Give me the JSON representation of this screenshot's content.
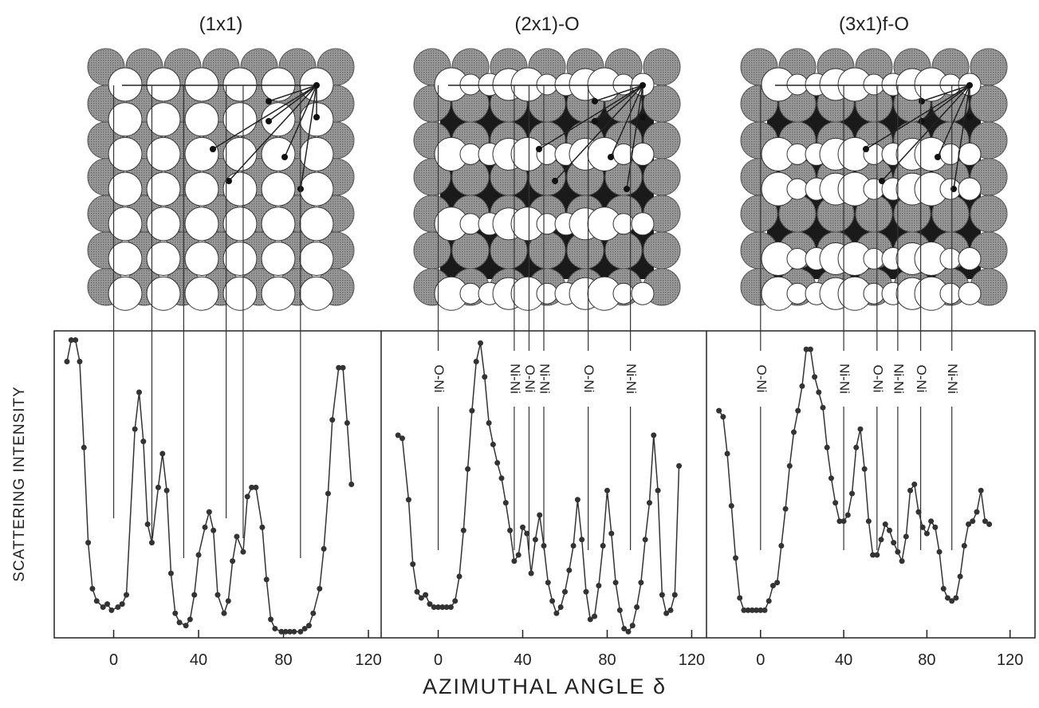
{
  "figure": {
    "xlabel": "AZIMUTHAL ANGLE δ",
    "ylabel": "SCATTERING INTENSITY"
  },
  "chart_data": [
    {
      "type": "line",
      "title": "(1x1)",
      "xlim": [
        -28,
        126
      ],
      "xticks": [
        0,
        40,
        80,
        120
      ],
      "ylim": [
        0,
        100
      ],
      "x": [
        -22,
        -20,
        -18,
        -16,
        -14,
        -12,
        -10,
        -8,
        -5,
        -3,
        -1,
        2,
        4,
        6,
        10,
        12,
        14,
        16,
        18,
        21,
        23,
        25,
        27,
        29,
        31,
        34,
        36,
        38,
        40,
        43,
        45,
        47,
        49,
        52,
        54,
        56,
        58,
        61,
        63,
        65,
        67,
        70,
        72,
        74,
        76,
        79,
        81,
        83,
        85,
        88,
        90,
        92,
        94,
        97,
        99,
        101,
        103,
        106,
        108,
        110,
        112
      ],
      "series": [
        {
          "color": "#333333",
          "values": [
            90,
            97,
            97,
            90,
            62,
            31,
            16,
            12,
            10,
            11,
            9,
            10,
            11,
            14,
            68,
            80,
            64,
            37,
            31,
            49,
            60,
            48,
            21,
            8,
            5,
            4,
            6,
            14,
            27,
            36,
            41,
            35,
            14,
            8,
            12,
            25,
            33,
            28,
            46,
            49,
            49,
            36,
            19,
            6,
            3,
            2,
            2,
            2,
            2,
            2,
            3,
            4,
            8,
            16,
            29,
            47,
            71,
            88,
            88,
            70,
            50
          ]
        }
      ],
      "markers": [
        0,
        18,
        33,
        53,
        61,
        88
      ]
    },
    {
      "type": "line",
      "title": "(2x1)-O",
      "xlim": [
        -27,
        127
      ],
      "xticks": [
        0,
        40,
        80,
        120
      ],
      "ylim": [
        0,
        100
      ],
      "x": [
        -19,
        -17,
        -14,
        -12,
        -10,
        -8,
        -6,
        -4,
        -2,
        0,
        2,
        4,
        6,
        8,
        10,
        12,
        14,
        16,
        18,
        20,
        22,
        24,
        26,
        28,
        30,
        32,
        34,
        36,
        38,
        40,
        42,
        44,
        46,
        48,
        50,
        52,
        54,
        56,
        58,
        60,
        62,
        64,
        66,
        68,
        70,
        72,
        74,
        76,
        78,
        80,
        82,
        84,
        86,
        88,
        90,
        92,
        94,
        96,
        98,
        100,
        102,
        104,
        106,
        108,
        110,
        112,
        114
      ],
      "series": [
        {
          "color": "#333333",
          "values": [
            66,
            65,
            45,
            24,
            15,
            13,
            14,
            11,
            10,
            10,
            10,
            10,
            10,
            12,
            20,
            35,
            55,
            74,
            90,
            96,
            85,
            70,
            63,
            57,
            52,
            44,
            35,
            25,
            27,
            36,
            34,
            21,
            32,
            40,
            30,
            18,
            12,
            8,
            10,
            15,
            22,
            30,
            45,
            32,
            15,
            6,
            7,
            17,
            30,
            48,
            34,
            18,
            9,
            3,
            2,
            4,
            10,
            18,
            32,
            44,
            66,
            48,
            14,
            8,
            9,
            14,
            56
          ]
        }
      ],
      "annotations": [
        {
          "x": 0,
          "text": "O-Ni"
        },
        {
          "x": 36,
          "text": "Ni-Ni"
        },
        {
          "x": 43,
          "text": "O-Ni"
        },
        {
          "x": 50,
          "text": "Ni-Ni"
        },
        {
          "x": 71,
          "text": "O-Ni"
        },
        {
          "x": 91,
          "text": "Ni-Ni"
        }
      ]
    },
    {
      "type": "line",
      "title": "(3x1)f-O",
      "xlim": [
        -26,
        132
      ],
      "xticks": [
        0,
        40,
        80,
        120
      ],
      "ylim": [
        0,
        100
      ],
      "x": [
        -20,
        -18,
        -16,
        -14,
        -12,
        -10,
        -8,
        -6,
        -4,
        -2,
        0,
        2,
        4,
        6,
        8,
        10,
        12,
        14,
        16,
        18,
        20,
        22,
        24,
        26,
        28,
        30,
        32,
        34,
        36,
        38,
        40,
        42,
        44,
        46,
        48,
        50,
        52,
        54,
        56,
        58,
        60,
        62,
        64,
        66,
        68,
        70,
        72,
        74,
        76,
        78,
        80,
        82,
        84,
        86,
        88,
        90,
        92,
        94,
        96,
        98,
        100,
        102,
        104,
        106,
        108,
        110
      ],
      "series": [
        {
          "color": "#333333",
          "values": [
            74,
            72,
            60,
            43,
            26,
            13,
            9,
            9,
            9,
            9,
            9,
            9,
            12,
            17,
            18,
            30,
            42,
            56,
            67,
            74,
            82,
            94,
            94,
            85,
            80,
            75,
            62,
            52,
            44,
            38,
            38,
            40,
            47,
            62,
            68,
            55,
            38,
            27,
            27,
            32,
            37,
            35,
            31,
            28,
            25,
            33,
            48,
            50,
            41,
            36,
            34,
            38,
            36,
            28,
            16,
            13,
            12,
            13,
            20,
            30,
            37,
            38,
            41,
            48,
            38,
            37
          ]
        }
      ],
      "annotations": [
        {
          "x": 0,
          "text": "O-Ni"
        },
        {
          "x": 40,
          "text": "Ni-Ni"
        },
        {
          "x": 56,
          "text": "O-Ni"
        },
        {
          "x": 66,
          "text": "Ni-Ni"
        },
        {
          "x": 77,
          "text": "O-Ni"
        },
        {
          "x": 92,
          "text": "Ni-Ni"
        }
      ]
    }
  ]
}
